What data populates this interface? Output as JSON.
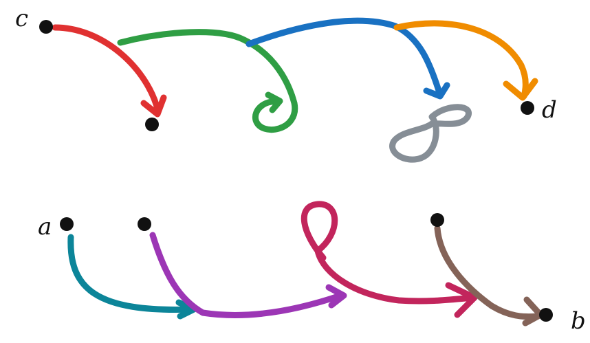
{
  "labels": {
    "c": "c",
    "d": "d",
    "a": "a",
    "b": "b"
  },
  "colors": {
    "node": "#111111",
    "red": "#e03131",
    "green": "#2f9e44",
    "blue": "#1971c2",
    "orange": "#f08c00",
    "gray": "#868e96",
    "teal": "#0c8599",
    "purple": "#9c36b5",
    "crimson": "#c2255c",
    "brown": "#846358"
  },
  "icons": {
    "arrowhead": "arrowhead-icon",
    "node": "filled-dot"
  }
}
